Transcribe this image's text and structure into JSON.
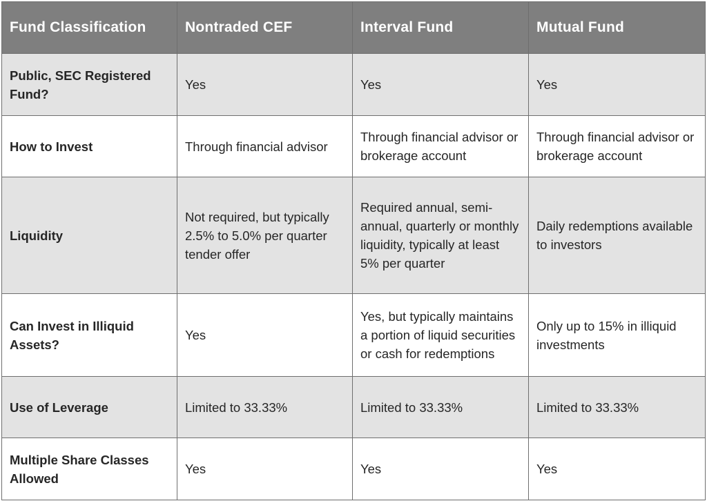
{
  "table": {
    "headers": [
      "Fund Classification",
      "Nontraded CEF",
      "Interval Fund",
      "Mutual Fund"
    ],
    "rows": [
      {
        "label": "Public, SEC Registered Fund?",
        "nontraded_cef": "Yes",
        "interval_fund": "Yes",
        "mutual_fund": "Yes"
      },
      {
        "label": "How to Invest",
        "nontraded_cef": "Through financial advisor",
        "interval_fund": "Through financial advisor or brokerage account",
        "mutual_fund": "Through financial advisor or brokerage account"
      },
      {
        "label": "Liquidity",
        "nontraded_cef": "Not required, but typically 2.5% to 5.0% per quarter tender offer",
        "interval_fund": "Required annual, semi-annual, quarterly or monthly liquidity, typically at least 5% per quarter",
        "mutual_fund": "Daily redemptions available to investors"
      },
      {
        "label": "Can Invest in Illiquid Assets?",
        "nontraded_cef": "Yes",
        "interval_fund": "Yes, but typically maintains a portion of liquid securities or cash for redemptions",
        "mutual_fund": "Only up to 15% in illiquid investments"
      },
      {
        "label": "Use of Leverage",
        "nontraded_cef": "Limited to 33.33%",
        "interval_fund": "Limited to 33.33%",
        "mutual_fund": "Limited to 33.33%"
      },
      {
        "label": "Multiple Share Classes Allowed",
        "nontraded_cef": "Yes",
        "interval_fund": "Yes",
        "mutual_fund": "Yes"
      }
    ]
  },
  "colors": {
    "header_background": "#7f7f7f",
    "header_text": "#ffffff",
    "shaded_row": "#e3e3e3",
    "plain_row": "#ffffff",
    "border": "#6e6e6e",
    "body_text": "#262626"
  }
}
